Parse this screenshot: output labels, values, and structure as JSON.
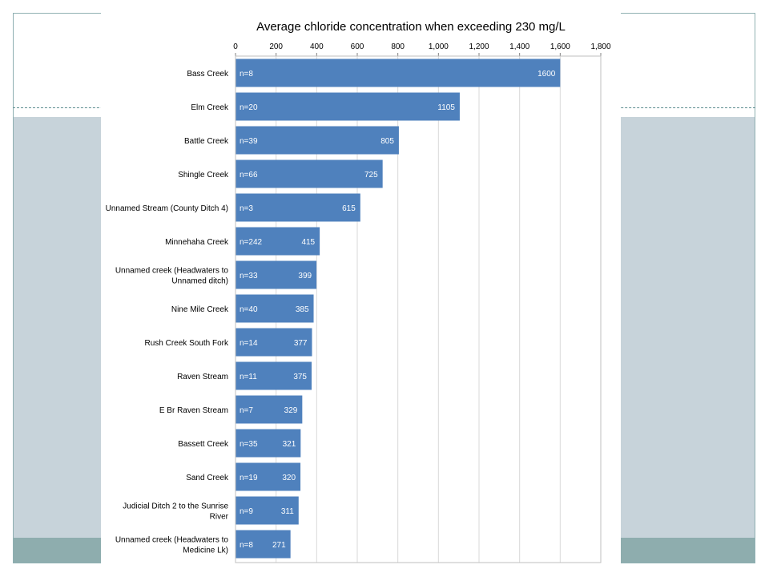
{
  "colors": {
    "bar": "#4f81bd",
    "grid": "#d9d9d9",
    "frame": "#8fb0b2",
    "band": "#c7d3da",
    "band_dark": "#8eadae"
  },
  "chart_data": {
    "type": "bar",
    "orientation": "horizontal",
    "title": "Average chloride concentration when exceeding 230 mg/L",
    "xlim": [
      0,
      1800
    ],
    "ticks": [
      "0",
      "200",
      "400",
      "600",
      "800",
      "1,000",
      "1,200",
      "1,400",
      "1,600",
      "1,800"
    ],
    "tick_values": [
      0,
      200,
      400,
      600,
      800,
      1000,
      1200,
      1400,
      1600,
      1800
    ],
    "grid": true,
    "categories": [
      [
        "Bass Creek"
      ],
      [
        "Elm Creek"
      ],
      [
        "Battle Creek"
      ],
      [
        "Shingle Creek"
      ],
      [
        "Unnamed Stream (County Ditch 4)"
      ],
      [
        "Minnehaha Creek"
      ],
      [
        "Unnamed creek (Headwaters to",
        "Unnamed ditch)"
      ],
      [
        "Nine Mile Creek"
      ],
      [
        "Rush Creek South Fork"
      ],
      [
        "Raven Stream"
      ],
      [
        "E Br Raven Stream"
      ],
      [
        "Bassett Creek"
      ],
      [
        "Sand Creek"
      ],
      [
        "Judicial Ditch 2 to the Sunrise",
        "River"
      ],
      [
        "Unnamed creek (Headwaters to",
        "Medicine Lk)"
      ]
    ],
    "values": [
      1600,
      1105,
      805,
      725,
      615,
      415,
      399,
      385,
      377,
      375,
      329,
      321,
      320,
      311,
      271
    ],
    "value_labels": [
      "1600",
      "1105",
      "805",
      "725",
      "615",
      "415",
      "399",
      "385",
      "377",
      "375",
      "329",
      "321",
      "320",
      "311",
      "271"
    ],
    "n_labels": [
      "n=8",
      "n=20",
      "n=39",
      "n=66",
      "n=3",
      "n=242",
      "n=33",
      "n=40",
      "n=14",
      "n=11",
      "n=7",
      "n=35",
      "n=19",
      "n=9",
      "n=8"
    ]
  }
}
